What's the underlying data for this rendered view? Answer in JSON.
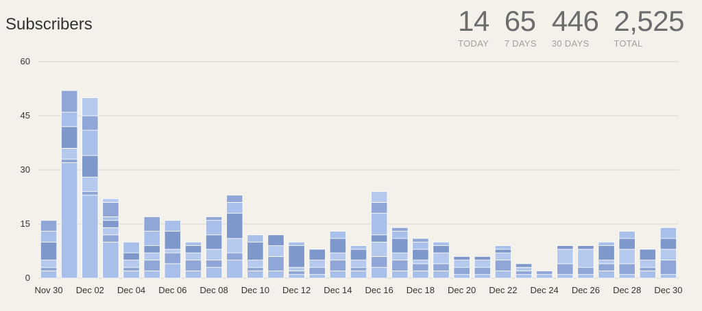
{
  "header": {
    "title": "Subscribers",
    "stats": [
      {
        "value": "14",
        "label": "TODAY"
      },
      {
        "value": "65",
        "label": "7 DAYS"
      },
      {
        "value": "446",
        "label": "30 DAYS"
      },
      {
        "value": "2,525",
        "label": "TOTAL"
      }
    ]
  },
  "colors": {
    "background": "#f4f1ea",
    "gridline": "#d8d5cf",
    "segments": [
      "#a8bfe9",
      "#8fa6d6",
      "#b5c8ee",
      "#7f98cc"
    ]
  },
  "chart_data": {
    "type": "bar",
    "stacked": true,
    "title": "Subscribers",
    "xlabel": "",
    "ylabel": "",
    "ylim": [
      0,
      60
    ],
    "yticks": [
      0,
      15,
      30,
      45,
      60
    ],
    "grid": true,
    "categories": [
      "Nov 30",
      "Dec 01",
      "Dec 02",
      "Dec 03",
      "Dec 04",
      "Dec 05",
      "Dec 06",
      "Dec 07",
      "Dec 08",
      "Dec 09",
      "Dec 10",
      "Dec 11",
      "Dec 12",
      "Dec 13",
      "Dec 14",
      "Dec 15",
      "Dec 16",
      "Dec 17",
      "Dec 18",
      "Dec 19",
      "Dec 20",
      "Dec 21",
      "Dec 22",
      "Dec 23",
      "Dec 24",
      "Dec 25",
      "Dec 26",
      "Dec 27",
      "Dec 28",
      "Dec 29",
      "Dec 30"
    ],
    "tick_labels": [
      "Nov 30",
      "",
      "Dec 02",
      "",
      "Dec 04",
      "",
      "Dec 06",
      "",
      "Dec 08",
      "",
      "Dec 10",
      "",
      "Dec 12",
      "",
      "Dec 14",
      "",
      "Dec 16",
      "",
      "Dec 18",
      "",
      "Dec 20",
      "",
      "Dec 22",
      "",
      "Dec 24",
      "",
      "Dec 26",
      "",
      "Dec 28",
      "",
      "Dec 30"
    ],
    "values": [
      16,
      52,
      50,
      22,
      10,
      17,
      16,
      10,
      17,
      23,
      12,
      12,
      10,
      8,
      13,
      9,
      24,
      14,
      11,
      10,
      6,
      6,
      9,
      4,
      2,
      9,
      9,
      10,
      13,
      8,
      14
    ],
    "segments": [
      [
        2,
        1,
        2,
        5,
        3,
        3
      ],
      [
        32,
        1,
        3,
        6,
        4,
        6
      ],
      [
        23,
        1,
        4,
        6,
        7,
        4,
        5
      ],
      [
        10,
        2,
        2,
        2,
        1,
        4,
        1
      ],
      [
        2,
        1,
        2,
        2,
        3
      ],
      [
        2,
        3,
        2,
        2,
        4,
        4
      ],
      [
        4,
        3,
        1,
        5,
        3
      ],
      [
        2,
        3,
        2,
        2,
        1
      ],
      [
        3,
        2,
        3,
        4,
        4,
        1
      ],
      [
        5,
        2,
        4,
        7,
        3,
        2
      ],
      [
        2,
        1,
        2,
        5,
        2
      ],
      [
        2,
        4,
        3,
        3
      ],
      [
        1,
        1,
        1,
        6,
        1
      ],
      [
        1,
        2,
        2,
        3
      ],
      [
        2,
        3,
        2,
        4,
        2
      ],
      [
        2,
        1,
        2,
        3,
        1
      ],
      [
        3,
        3,
        4,
        2,
        6,
        3,
        3
      ],
      [
        2,
        3,
        2,
        4,
        2,
        1
      ],
      [
        2,
        2,
        1,
        3,
        2,
        1
      ],
      [
        2,
        2,
        3,
        2,
        1
      ],
      [
        1,
        2,
        2,
        1
      ],
      [
        1,
        2,
        2,
        1
      ],
      [
        2,
        3,
        2,
        1,
        1
      ],
      [
        1,
        1,
        1,
        1
      ],
      [
        1,
        1
      ],
      [
        1,
        3,
        4,
        1
      ],
      [
        1,
        2,
        5,
        1
      ],
      [
        2,
        2,
        1,
        4,
        1
      ],
      [
        1,
        3,
        4,
        3,
        2
      ],
      [
        2,
        1,
        2,
        3
      ],
      [
        1,
        4,
        3,
        3,
        3
      ]
    ]
  }
}
